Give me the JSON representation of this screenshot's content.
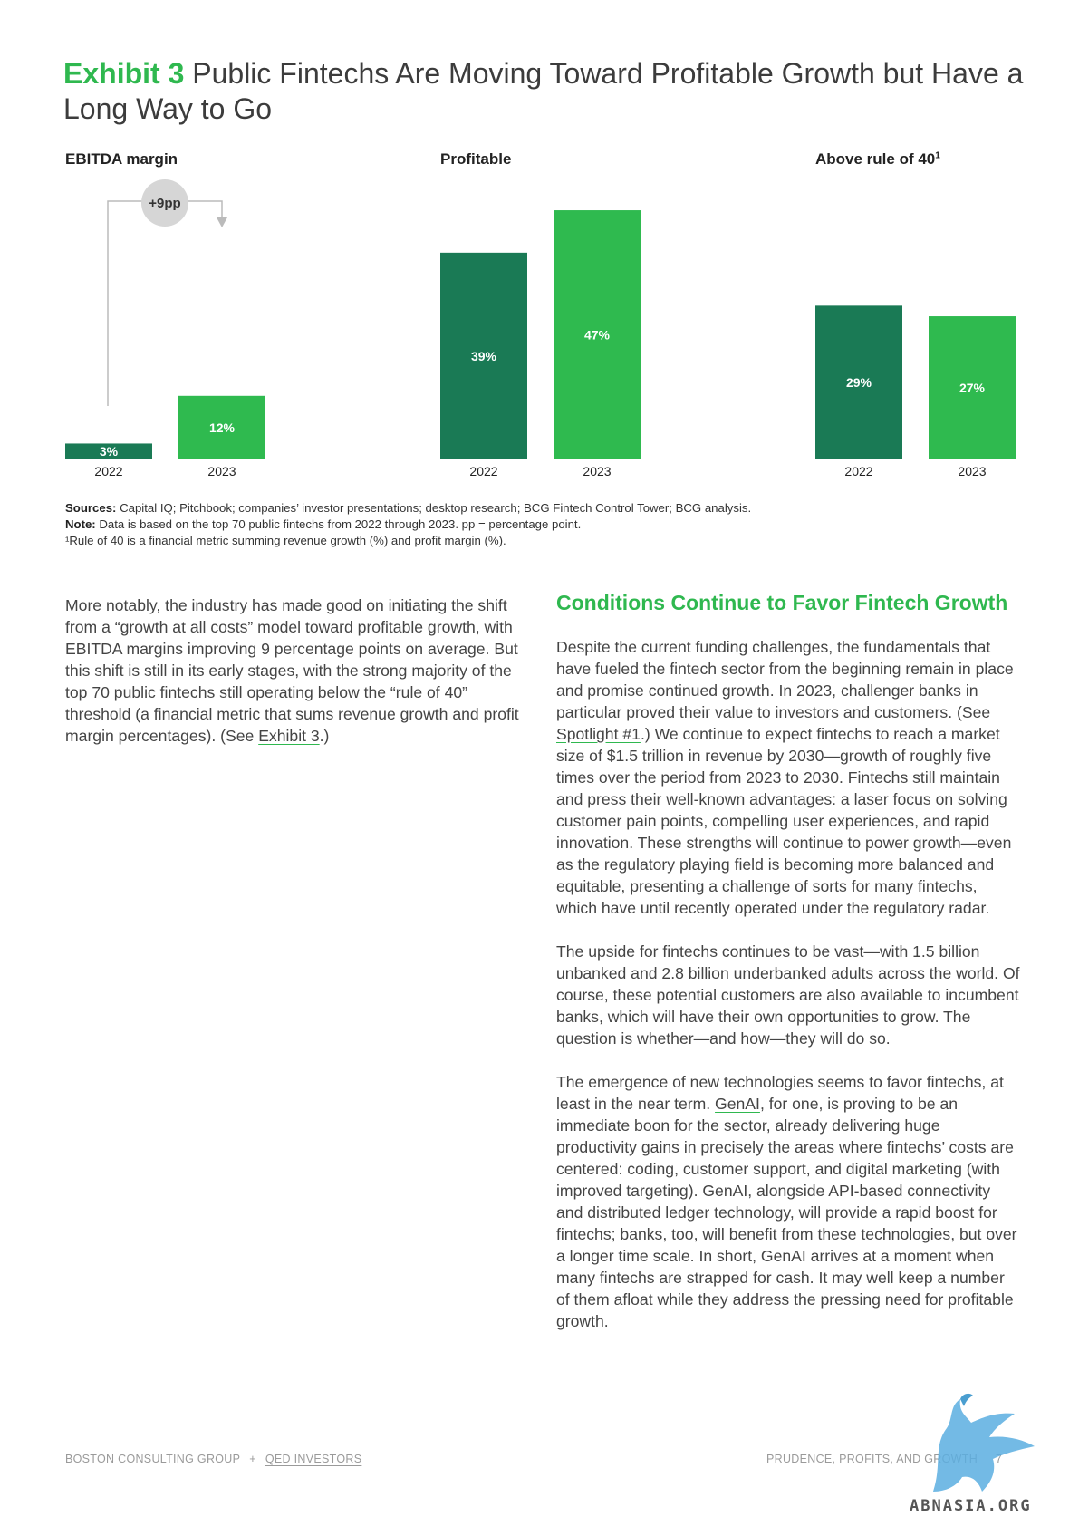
{
  "exhibit": {
    "label": "Exhibit 3",
    "title": "Public Fintechs Are Moving Toward Profitable Growth but Have a Long Way to Go"
  },
  "charts": [
    {
      "heading": "EBITDA margin",
      "annotation": "+9pp",
      "bars": [
        {
          "year": "2022",
          "label": "3%",
          "value": 3,
          "color": "#1a7a55"
        },
        {
          "year": "2023",
          "label": "12%",
          "value": 12,
          "color": "#2fba4f"
        }
      ]
    },
    {
      "heading": "Profitable",
      "bars": [
        {
          "year": "2022",
          "label": "39%",
          "value": 39,
          "color": "#1a7a55"
        },
        {
          "year": "2023",
          "label": "47%",
          "value": 47,
          "color": "#2fba4f"
        }
      ]
    },
    {
      "heading": "Above rule of 40",
      "heading_sup": "1",
      "bars": [
        {
          "year": "2022",
          "label": "29%",
          "value": 29,
          "color": "#1a7a55"
        },
        {
          "year": "2023",
          "label": "27%",
          "value": 27,
          "color": "#2fba4f"
        }
      ]
    }
  ],
  "sources": {
    "sources_label": "Sources:",
    "sources_text": " Capital IQ; Pitchbook; companies’ investor presentations; desktop research; BCG Fintech Control Tower; BCG analysis.",
    "note_label": "Note:",
    "note_text": " Data is based on the top 70 public fintechs from 2022 through 2023. pp = percentage point.",
    "footnote": "¹Rule of 40 is a financial metric summing revenue growth (%) and profit margin (%)."
  },
  "left_col": {
    "p1_a": "More notably, the industry has made good on initiating the shift from a “growth at all costs” model toward profitable growth, with EBITDA margins improving 9 percentage points on average. But this shift is still in its early stages, with the strong majority of the top 70 public fintechs still operating below the “rule of 40” threshold (a financial metric that sums revenue growth and profit margin percentages). (See ",
    "p1_link": "Exhibit 3",
    "p1_b": ".)"
  },
  "right_col": {
    "heading": "Conditions Continue to Favor Fintech Growth",
    "p1_a": "Despite the current funding challenges, the fundamentals that have fueled the fintech sector from the beginning remain in place and promise continued growth. In 2023, challenger banks in particular proved their value to investors and customers. (See ",
    "p1_link": "Spotlight #1",
    "p1_b": ".) We continue to expect fintechs to reach a market size of $1.5 trillion in revenue by 2030—growth of roughly five times over the period from 2023 to 2030. Fintechs still maintain and press their well-known advantages: a laser focus on solving customer pain points, compelling user experiences, and rapid innovation. These strengths will continue to power growth—even as the regulatory playing field is becoming more balanced and equitable, presenting a challenge of sorts for many fintechs, which have until recently operated under the regulatory radar.",
    "p2": "The upside for fintechs continues to be vast—with 1.5 billion unbanked and 2.8 billion underbanked adults across the world. Of course, these potential customers are also available to incumbent banks, which will have their own opportunities to grow. The question is whether—and how—they will do so.",
    "p3_a": "The emergence of new technologies seems to favor fintechs, at least in the near term. ",
    "p3_link": "GenAI",
    "p3_b": ", for one, is proving to be an immediate boon for the sector, already delivering huge productivity gains in precisely the areas where fintechs’ costs are centered: coding, customer support, and digital marketing (with improved targeting). GenAI, alongside API-based connectivity and distributed ledger technology, will provide a rapid boost for fintechs; banks, too, will benefit from these technologies, but over a longer time scale. In short, GenAI arrives at a moment when many fintechs are strapped for cash. It may well keep a number of them afloat while they address the pressing need for profitable growth."
  },
  "footer": {
    "org1": "BOSTON CONSULTING GROUP",
    "sep": "+",
    "org2": "QED INVESTORS",
    "report": "PRUDENCE, PROFITS, AND GROWTH",
    "page": "7"
  },
  "watermark": {
    "text": "ABNASIA.ORG",
    "color": "#5aaee0"
  }
}
